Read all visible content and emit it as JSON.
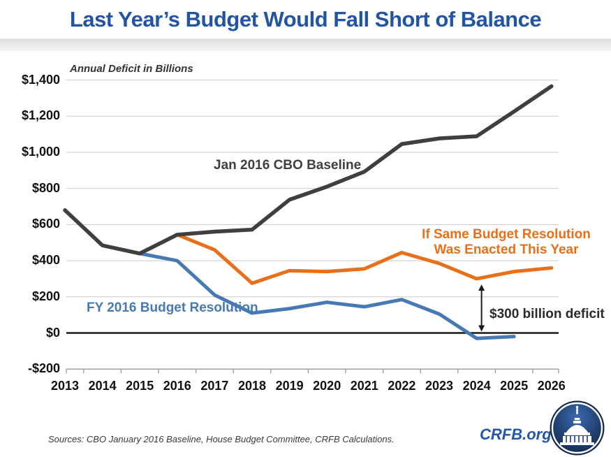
{
  "title": "Last Year’s Budget Would Fall Short of Balance",
  "axis_note": "Annual Deficit in Billions",
  "labels": {
    "enacted_line1": "If Same Budget Resolution",
    "enacted_line2": "Was Enacted This Year"
  },
  "footer": {
    "sources": "Sources: CBO January 2016 Baseline, House Budget Committee, CRFB Calculations.",
    "brand": "CRFB.org"
  },
  "colors": {
    "title_blue": "#2155A4",
    "baseline_gray": "#3F3F3F",
    "resolution_blue": "#4779B2",
    "enacted_orange": "#E8701A",
    "grid_gray": "#C9C9C9",
    "zero_line": "#1A1A1A",
    "axis_gray": "#9A9A9A",
    "annotation_dark": "#2B2B2B",
    "brand_blue": "#2156A8",
    "logo_navy": "#16294E"
  },
  "chart_data": {
    "type": "line",
    "x": [
      2013,
      2014,
      2015,
      2016,
      2017,
      2018,
      2019,
      2020,
      2021,
      2022,
      2023,
      2024,
      2025,
      2026
    ],
    "ylim": [
      -200,
      1400
    ],
    "ytick_step": 200,
    "ytick_labels": [
      "$1,400",
      "$1,200",
      "$1,000",
      "$800",
      "$600",
      "$400",
      "$200",
      "$0",
      "-$200"
    ],
    "grid": true,
    "legend": "inline-labels",
    "series": [
      {
        "name": "Jan 2016 CBO Baseline",
        "color": "#3F3F3F",
        "values": [
          680,
          485,
          440,
          544,
          561,
          572,
          738,
          810,
          893,
          1046,
          1077,
          1089,
          1226,
          1366
        ]
      },
      {
        "name": "FY 2016 Budget Resolution",
        "color": "#4779B2",
        "values": [
          null,
          null,
          440,
          400,
          210,
          110,
          135,
          170,
          145,
          185,
          105,
          -30,
          -20,
          null
        ]
      },
      {
        "name": "If Same Budget Resolution Was Enacted This Year",
        "color": "#E8701A",
        "values": [
          null,
          null,
          null,
          544,
          460,
          275,
          345,
          340,
          355,
          445,
          385,
          300,
          340,
          360
        ]
      }
    ],
    "annotation": {
      "text": "$300 billion deficit",
      "year": 2024,
      "from_value": 300,
      "to_value": 0
    }
  }
}
